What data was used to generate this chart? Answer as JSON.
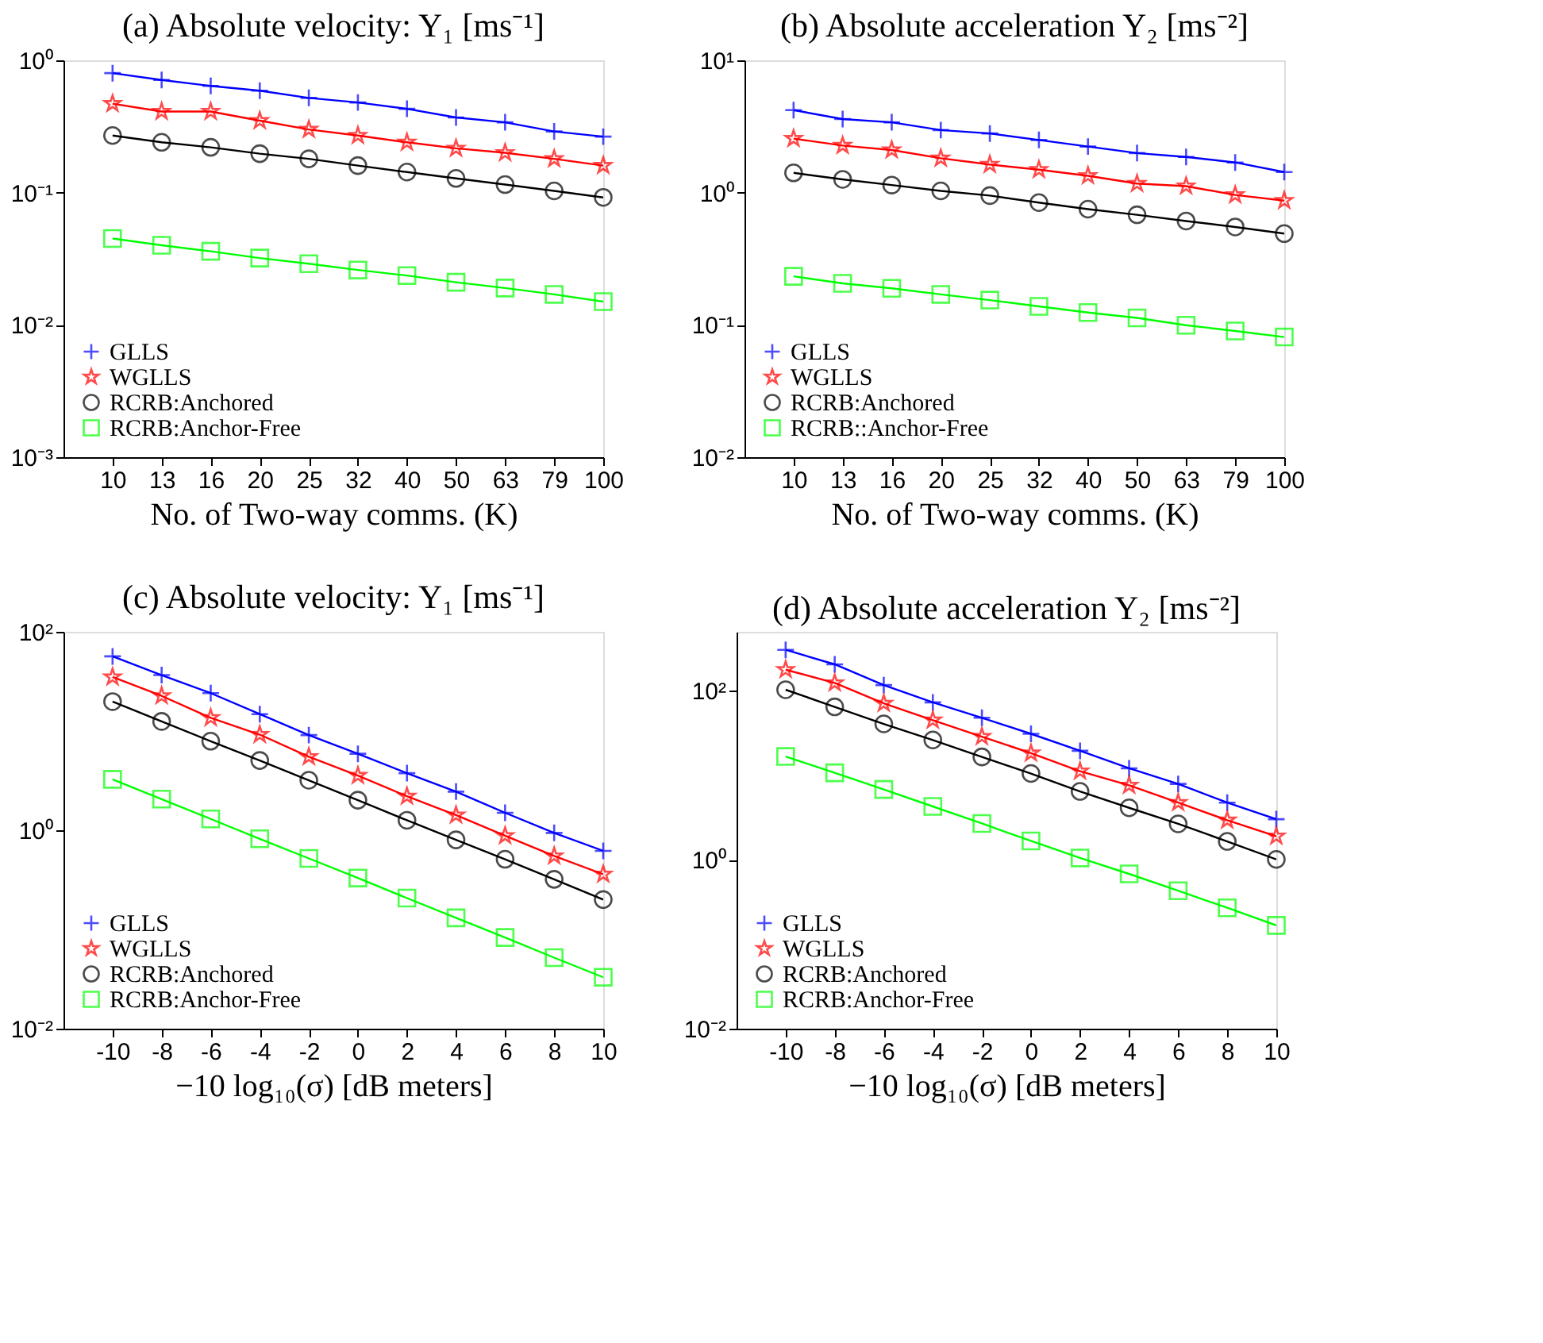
{
  "chart_data": [
    {
      "type": "line",
      "title": "(a) Absolute velocity: Y₁ [ms⁻¹]",
      "xlabel": "No. of Two-way comms. (K)",
      "categories": [
        "10",
        "13",
        "16",
        "20",
        "25",
        "32",
        "40",
        "50",
        "63",
        "79",
        "100"
      ],
      "ylim": [
        0.001,
        1
      ],
      "yticks": [
        {
          "value": 0.001,
          "label": "10⁻³"
        },
        {
          "value": 0.01,
          "label": "10⁻²"
        },
        {
          "value": 0.1,
          "label": "10⁻¹"
        },
        {
          "value": 1,
          "label": "10⁰"
        }
      ],
      "log": true,
      "legend": "bottom left",
      "series": [
        {
          "name": "GLLS",
          "color": "#0000ff",
          "marker": "cross",
          "values": [
            0.8,
            0.71,
            0.64,
            0.59,
            0.52,
            0.48,
            0.43,
            0.37,
            0.34,
            0.29,
            0.265
          ]
        },
        {
          "name": "WGLLS",
          "color": "#ff0000",
          "marker": "star",
          "values": [
            0.47,
            0.41,
            0.41,
            0.35,
            0.3,
            0.27,
            0.24,
            0.216,
            0.2,
            0.18,
            0.16
          ]
        },
        {
          "name": "RCRB:Anchored",
          "color": "#000000",
          "marker": "circle",
          "values": [
            0.27,
            0.24,
            0.22,
            0.197,
            0.18,
            0.16,
            0.143,
            0.128,
            0.115,
            0.103,
            0.092
          ]
        },
        {
          "name": "RCRB:Anchor-Free",
          "color": "#00ff00",
          "marker": "square",
          "values": [
            0.045,
            0.04,
            0.036,
            0.032,
            0.029,
            0.026,
            0.0236,
            0.021,
            0.019,
            0.017,
            0.015
          ]
        }
      ]
    },
    {
      "type": "line",
      "title": "(b) Absolute acceleration Y₂ [ms⁻²]",
      "xlabel": "No. of Two-way comms. (K)",
      "categories": [
        "10",
        "13",
        "16",
        "20",
        "25",
        "32",
        "40",
        "50",
        "63",
        "79",
        "100"
      ],
      "ylim": [
        0.01,
        10
      ],
      "yticks": [
        {
          "value": 0.01,
          "label": "10⁻²"
        },
        {
          "value": 0.1,
          "label": "10⁻¹"
        },
        {
          "value": 1,
          "label": "10⁰"
        },
        {
          "value": 10,
          "label": "10¹"
        }
      ],
      "log": true,
      "legend": "bottom left",
      "series": [
        {
          "name": "GLLS",
          "color": "#0000ff",
          "marker": "cross",
          "values": [
            4.2,
            3.6,
            3.4,
            2.97,
            2.8,
            2.5,
            2.23,
            1.99,
            1.86,
            1.69,
            1.43
          ]
        },
        {
          "name": "WGLLS",
          "color": "#ff0000",
          "marker": "star",
          "values": [
            2.56,
            2.27,
            2.1,
            1.82,
            1.63,
            1.49,
            1.34,
            1.17,
            1.12,
            0.96,
            0.87
          ]
        },
        {
          "name": "RCRB:Anchored",
          "color": "#000000",
          "marker": "circle",
          "values": [
            1.41,
            1.26,
            1.14,
            1.03,
            0.95,
            0.84,
            0.75,
            0.68,
            0.61,
            0.55,
            0.49
          ]
        },
        {
          "name": "RCRB::Anchor-Free",
          "color": "#00ff00",
          "marker": "square",
          "values": [
            0.233,
            0.206,
            0.189,
            0.17,
            0.154,
            0.138,
            0.124,
            0.113,
            0.0995,
            0.09,
            0.081
          ]
        }
      ]
    },
    {
      "type": "line",
      "title": "(c) Absolute velocity: Y₁ [ms⁻¹]",
      "xlabel": "−10 log₁₀(σ) [dB meters]",
      "x": [
        -10,
        -8,
        -6,
        -4,
        -2,
        0,
        2,
        4,
        6,
        8,
        10
      ],
      "xlim": [
        -12,
        10
      ],
      "xticks": [
        -10,
        -8,
        -6,
        -4,
        -2,
        0,
        2,
        4,
        6,
        8,
        10
      ],
      "ylim": [
        0.01,
        100
      ],
      "yticks": [
        {
          "value": 0.01,
          "label": "10⁻²"
        },
        {
          "value": 1,
          "label": "10⁰"
        },
        {
          "value": 100,
          "label": "10²"
        }
      ],
      "log": true,
      "legend": "bottom left",
      "series": [
        {
          "name": "GLLS",
          "color": "#0000ff",
          "marker": "cross",
          "values": [
            56.6,
            36.6,
            24.1,
            14.8,
            9.1,
            5.9,
            3.76,
            2.45,
            1.5,
            0.94,
            0.62
          ]
        },
        {
          "name": "WGLLS",
          "color": "#ff0000",
          "marker": "star",
          "values": [
            35,
            22.6,
            13.6,
            9.2,
            5.5,
            3.56,
            2.2,
            1.42,
            0.88,
            0.55,
            0.36
          ]
        },
        {
          "name": "RCRB:Anchored",
          "color": "#000000",
          "marker": "circle",
          "values": [
            19.8,
            12.5,
            7.9,
            5.05,
            3.19,
            2.01,
            1.26,
            0.8,
            0.51,
            0.32,
            0.2
          ]
        },
        {
          "name": "RCRB:Anchor-Free",
          "color": "#00ff00",
          "marker": "square",
          "values": [
            3.26,
            2.06,
            1.3,
            0.82,
            0.52,
            0.33,
            0.207,
            0.131,
            0.083,
            0.052,
            0.033
          ]
        }
      ]
    },
    {
      "type": "line",
      "title": "(d) Absolute acceleration Y₂ [ms⁻²]",
      "xlabel": "−10 log₁₀(σ) [dB meters]",
      "x": [
        -10,
        -8,
        -6,
        -4,
        -2,
        0,
        2,
        4,
        6,
        8,
        10
      ],
      "xlim": [
        -12,
        10
      ],
      "xticks": [
        -10,
        -8,
        -6,
        -4,
        -2,
        0,
        2,
        4,
        6,
        8,
        10
      ],
      "ylim": [
        0.01,
        500
      ],
      "yticks": [
        {
          "value": 0.01,
          "label": "10⁻²"
        },
        {
          "value": 1,
          "label": "10⁰"
        },
        {
          "value": 100,
          "label": "10²"
        }
      ],
      "log": true,
      "legend": "bottom left",
      "series": [
        {
          "name": "GLLS",
          "color": "#0000ff",
          "marker": "cross",
          "values": [
            306,
            206,
            117,
            73,
            48,
            31,
            19.5,
            12.1,
            7.9,
            4.75,
            3.02
          ]
        },
        {
          "name": "WGLLS",
          "color": "#ff0000",
          "marker": "star",
          "values": [
            178,
            124,
            71,
            45,
            28.7,
            18.3,
            11.2,
            7.6,
            4.75,
            2.94,
            1.9
          ]
        },
        {
          "name": "RCRB:Anchored",
          "color": "#000000",
          "marker": "circle",
          "values": [
            103,
            64.6,
            40.6,
            26.2,
            16.5,
            10.5,
            6.45,
            4.12,
            2.66,
            1.65,
            1.01
          ]
        },
        {
          "name": "RCRB:Anchor-Free",
          "color": "#00ff00",
          "marker": "square",
          "values": [
            16.7,
            10.7,
            6.8,
            4.28,
            2.69,
            1.67,
            1.05,
            0.68,
            0.43,
            0.27,
            0.167
          ]
        }
      ]
    }
  ]
}
